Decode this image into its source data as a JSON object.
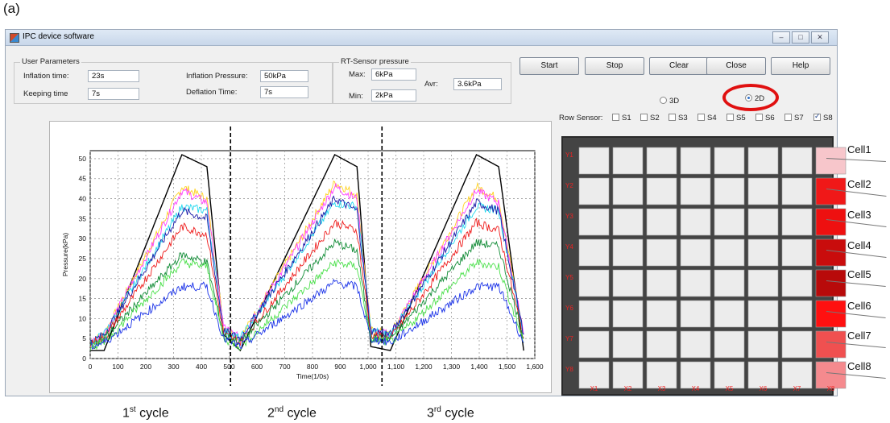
{
  "figure_label": "(a)",
  "window": {
    "title": "IPC device software",
    "controls": [
      "–",
      "□",
      "✕"
    ]
  },
  "user_parameters": {
    "title": "User Parameters",
    "inflation_time_label": "Inflation time:",
    "inflation_time": "23s",
    "keeping_time_label": "Keeping time",
    "keeping_time": "7s",
    "inflation_pressure_label": "Inflation Pressure:",
    "inflation_pressure": "50kPa",
    "deflation_time_label": "Deflation Time:",
    "deflation_time": "7s"
  },
  "rt_sensor": {
    "title": "RT-Sensor pressure",
    "max_label": "Max:",
    "max": "6kPa",
    "min_label": "Min:",
    "min": "2kPa",
    "avr_label": "Avr:",
    "avr": "3.6kPa"
  },
  "buttons": {
    "start": "Start",
    "stop": "Stop",
    "clear": "Clear",
    "close": "Close",
    "help": "Help"
  },
  "view_mode": {
    "options": [
      "3D",
      "2D"
    ],
    "selected": "2D"
  },
  "row_sensor": {
    "label": "Row Sensor:",
    "items": [
      {
        "label": "S1",
        "checked": false
      },
      {
        "label": "S2",
        "checked": false
      },
      {
        "label": "S3",
        "checked": false
      },
      {
        "label": "S4",
        "checked": false
      },
      {
        "label": "S5",
        "checked": false
      },
      {
        "label": "S6",
        "checked": false
      },
      {
        "label": "S7",
        "checked": false
      },
      {
        "label": "S8",
        "checked": true
      }
    ]
  },
  "heatmap": {
    "row_labels": [
      "Y1",
      "Y2",
      "Y3",
      "Y4",
      "Y5",
      "Y6",
      "Y7",
      "Y8"
    ],
    "col_labels": [
      "X1",
      "X2",
      "X3",
      "X4",
      "X5",
      "X6",
      "X7",
      "X8"
    ],
    "base_color": "#ececec",
    "highlight_colors": [
      "#f7c6cb",
      "#f01818",
      "#ee1010",
      "#c90c0c",
      "#b80a0a",
      "#ff1010",
      "#f05050",
      "#f58a8e"
    ],
    "cell_labels": [
      "Cell1",
      "Cell2",
      "Cell3",
      "Cell4",
      "Cell5",
      "Cell6",
      "Cell7",
      "Cell8"
    ]
  },
  "cycle_labels": [
    {
      "num": "1",
      "sup": "st",
      "word": " cycle"
    },
    {
      "num": "2",
      "sup": "nd",
      "word": " cycle"
    },
    {
      "num": "3",
      "sup": "rd",
      "word": " cycle"
    }
  ],
  "chart_data": {
    "type": "line",
    "xlabel": "Time(1/0s)",
    "ylabel": "Pressure(kPa)",
    "xlim": [
      0,
      1600
    ],
    "ylim": [
      0,
      52
    ],
    "x_ticks": [
      0,
      100,
      200,
      300,
      400,
      500,
      600,
      700,
      800,
      900,
      1000,
      1100,
      1200,
      1300,
      1400,
      1500,
      1600
    ],
    "x_tick_labels": [
      "0",
      "100",
      "200",
      "300",
      "400",
      "500",
      "600",
      "700",
      "800",
      "900",
      "1,000",
      "1,100",
      "1,200",
      "1,300",
      "1,400",
      "1,500",
      "1,600"
    ],
    "y_ticks": [
      0,
      5,
      10,
      15,
      20,
      25,
      30,
      35,
      40,
      45,
      50
    ],
    "grid": true,
    "cycle_dividers_x": [
      505,
      1050
    ],
    "series": [
      {
        "color": "#000000",
        "x": [
          0,
          50,
          330,
          420,
          480,
          540,
          880,
          960,
          1010,
          1080,
          1390,
          1470,
          1560
        ],
        "y": [
          2,
          2,
          51,
          48,
          6,
          2,
          51,
          48,
          3,
          2,
          51,
          48,
          2
        ]
      },
      {
        "color": "#ffd21f",
        "x": [
          0,
          50,
          330,
          420,
          480,
          540,
          880,
          960,
          1010,
          1080,
          1390,
          1470,
          1560
        ],
        "y": [
          4,
          6,
          43,
          40,
          8,
          5,
          44,
          41,
          7,
          6,
          43,
          40,
          6
        ]
      },
      {
        "color": "#ff40ff",
        "x": [
          0,
          50,
          330,
          420,
          480,
          540,
          880,
          960,
          1010,
          1080,
          1390,
          1470,
          1560
        ],
        "y": [
          4,
          6,
          42,
          39,
          8,
          5,
          43,
          40,
          7,
          6,
          42,
          39,
          6
        ]
      },
      {
        "color": "#22d8ee",
        "x": [
          0,
          50,
          330,
          420,
          480,
          540,
          880,
          960,
          1010,
          1080,
          1390,
          1470,
          1560
        ],
        "y": [
          4,
          6,
          38,
          37,
          7,
          5,
          39,
          38,
          7,
          6,
          38,
          37,
          6
        ]
      },
      {
        "color": "#1a1aa8",
        "x": [
          0,
          50,
          330,
          420,
          480,
          540,
          880,
          960,
          1010,
          1080,
          1390,
          1470,
          1560
        ],
        "y": [
          4,
          6,
          37,
          35,
          7,
          5,
          40,
          37,
          7,
          6,
          39,
          37,
          6
        ]
      },
      {
        "color": "#ee1c1c",
        "x": [
          0,
          50,
          330,
          420,
          480,
          540,
          880,
          960,
          1010,
          1080,
          1390,
          1470,
          1560
        ],
        "y": [
          4,
          5,
          33,
          31,
          6,
          4,
          34,
          32,
          6,
          5,
          34,
          32,
          5
        ]
      },
      {
        "color": "#118c36",
        "x": [
          0,
          50,
          330,
          420,
          480,
          540,
          880,
          960,
          1010,
          1080,
          1390,
          1470,
          1560
        ],
        "y": [
          3,
          5,
          26,
          24,
          6,
          4,
          29,
          27,
          5,
          5,
          29,
          28,
          5
        ]
      },
      {
        "color": "#4be04b",
        "x": [
          0,
          50,
          330,
          420,
          480,
          540,
          880,
          960,
          1010,
          1080,
          1390,
          1470,
          1560
        ],
        "y": [
          3,
          4,
          24,
          23,
          5,
          3,
          24,
          23,
          5,
          4,
          24,
          23,
          4
        ]
      },
      {
        "color": "#1a32e8",
        "x": [
          0,
          50,
          330,
          420,
          480,
          540,
          880,
          960,
          1010,
          1080,
          1390,
          1470,
          1560
        ],
        "y": [
          3,
          4,
          18,
          18,
          5,
          3,
          19,
          18,
          5,
          4,
          18,
          18,
          4
        ]
      }
    ]
  }
}
